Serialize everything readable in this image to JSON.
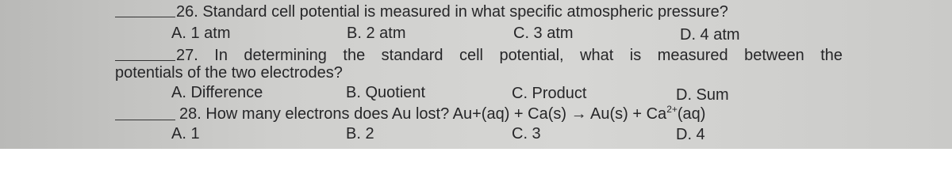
{
  "questions": [
    {
      "text": "26. Standard cell potential is measured in what specific atmospheric pressure?",
      "choices": [
        "A. 1 atm",
        "B. 2 atm",
        "C. 3 atm",
        "D. 4 atm"
      ]
    },
    {
      "text_line1": "27. In determining the standard cell potential, what is measured between the",
      "text_line2": "potentials of the two electrodes?",
      "choices": [
        "A. Difference",
        "B. Quotient",
        "C. Product",
        "D. Sum"
      ]
    },
    {
      "text": "28. How many electrons does Au lost? Au+(aq) + Ca(s) → Au(s) + Ca",
      "superscript": "2+",
      "text_end": "(aq)",
      "choices": [
        "A. 1",
        "B. 2",
        "C. 3",
        "D. 4"
      ]
    }
  ]
}
